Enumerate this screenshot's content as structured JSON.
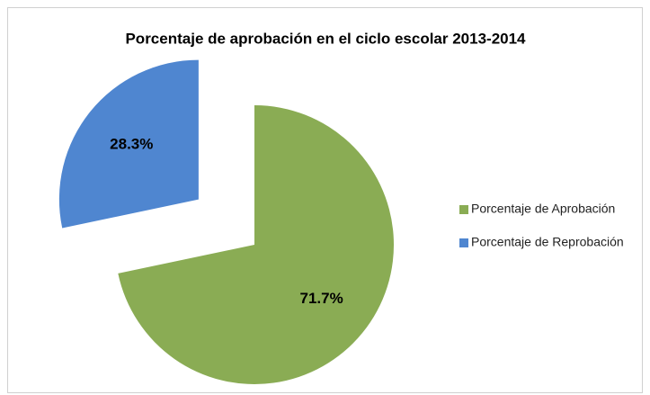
{
  "chart_data": {
    "type": "pie",
    "title": "Porcentaje de aprobación en el ciclo escolar 2013-2014",
    "categories": [
      "Porcentaje de Aprobación",
      "Porcentaje de Reprobación"
    ],
    "values": [
      71.7,
      28.3
    ],
    "value_labels": [
      "71.7%",
      "28.3%"
    ],
    "colors": [
      "#8aac54",
      "#4f86d0"
    ],
    "explode": [
      false,
      true
    ],
    "legend": "right"
  }
}
